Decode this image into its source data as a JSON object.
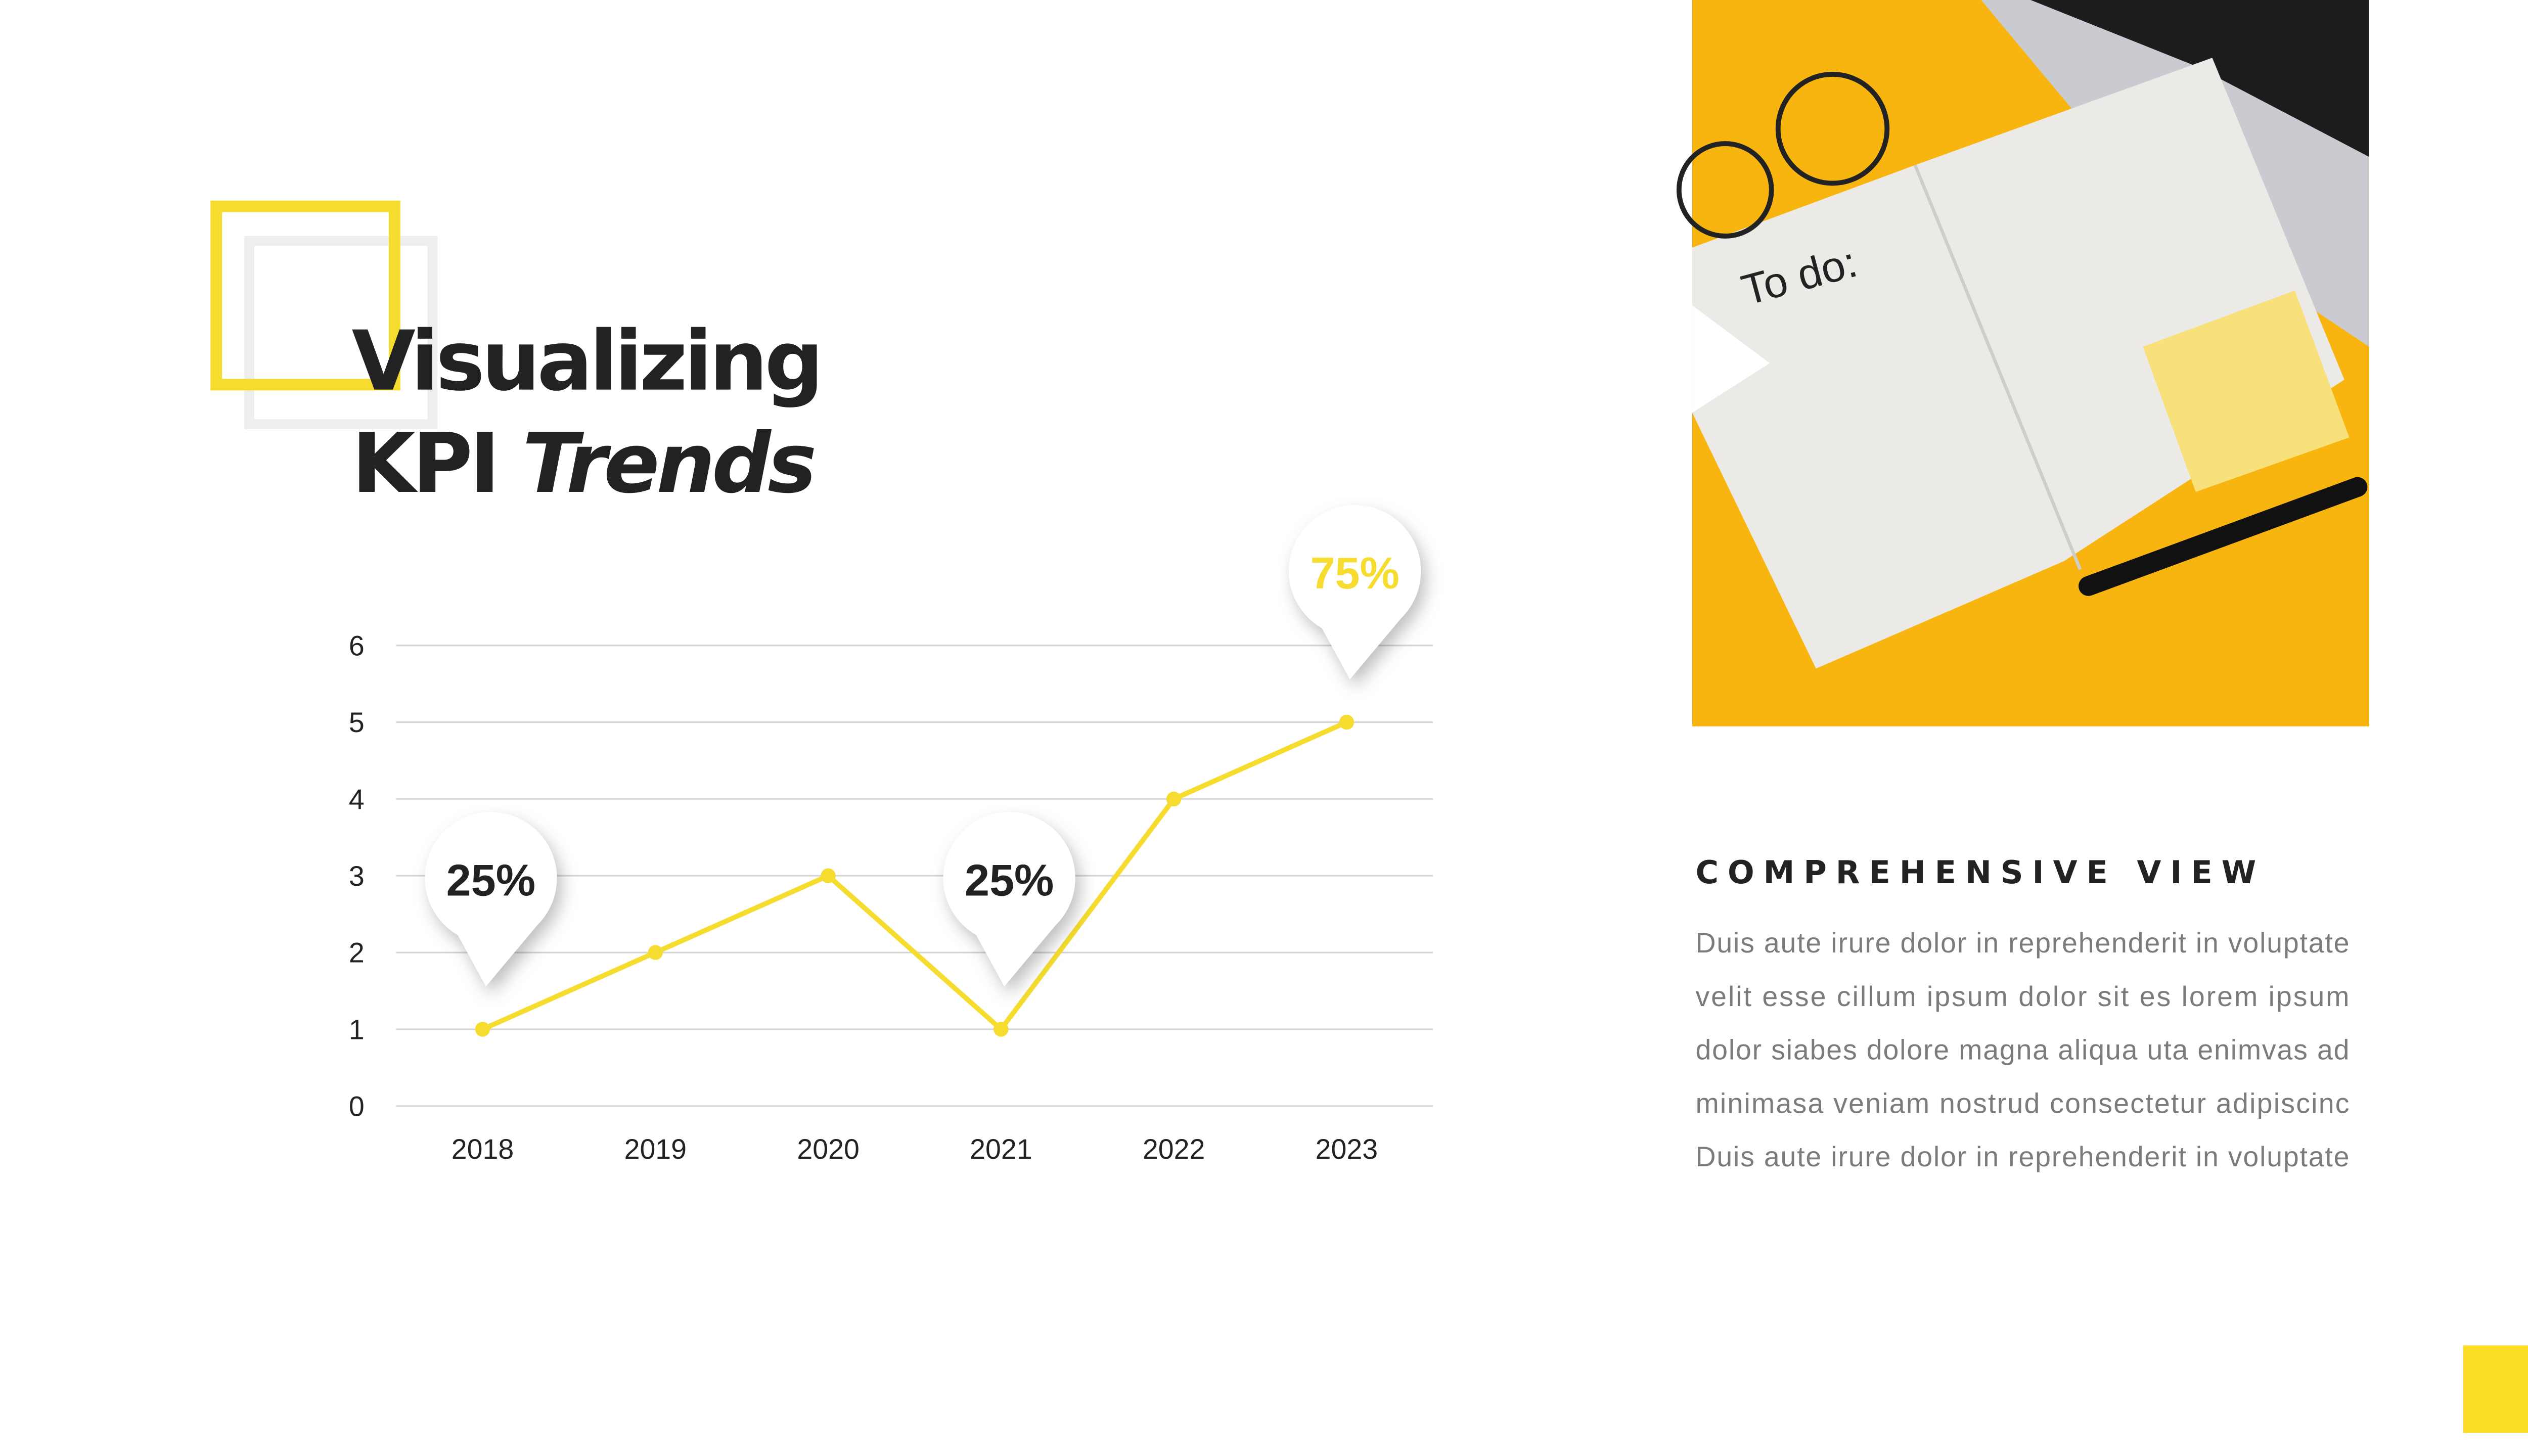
{
  "title": {
    "line1": "Visualizing",
    "line2": "KPI",
    "line2_emphasis": "Trends"
  },
  "photo_text": "To do:",
  "side": {
    "heading": "COMPREHENSIVE VIEW",
    "lines": [
      "Duis aute irure dolor in reprehenderit in voluptate",
      "velit esse cillum ipsum dolor sit es lorem ipsum",
      "dolor siabes dolore magna aliqua uta enimvas ad",
      "minimasa veniam nostrud consectetur adipiscinc",
      "Duis aute irure dolor in reprehenderit in voluptate"
    ]
  },
  "chart_data": {
    "type": "line",
    "categories": [
      "2018",
      "2019",
      "2020",
      "2021",
      "2022",
      "2023"
    ],
    "values": [
      1,
      2,
      3,
      1,
      4,
      5
    ],
    "color": "#f5dc2e",
    "ylim": [
      0,
      6
    ],
    "yticks": [
      0,
      1,
      2,
      3,
      4,
      5,
      6
    ],
    "grid": true,
    "annotations": [
      {
        "x": "2018",
        "text": "25%",
        "color": "#222222"
      },
      {
        "x": "2021",
        "text": "25%",
        "color": "#222222"
      },
      {
        "x": "2023",
        "text": "75%",
        "color": "#f5dc2e"
      }
    ]
  }
}
